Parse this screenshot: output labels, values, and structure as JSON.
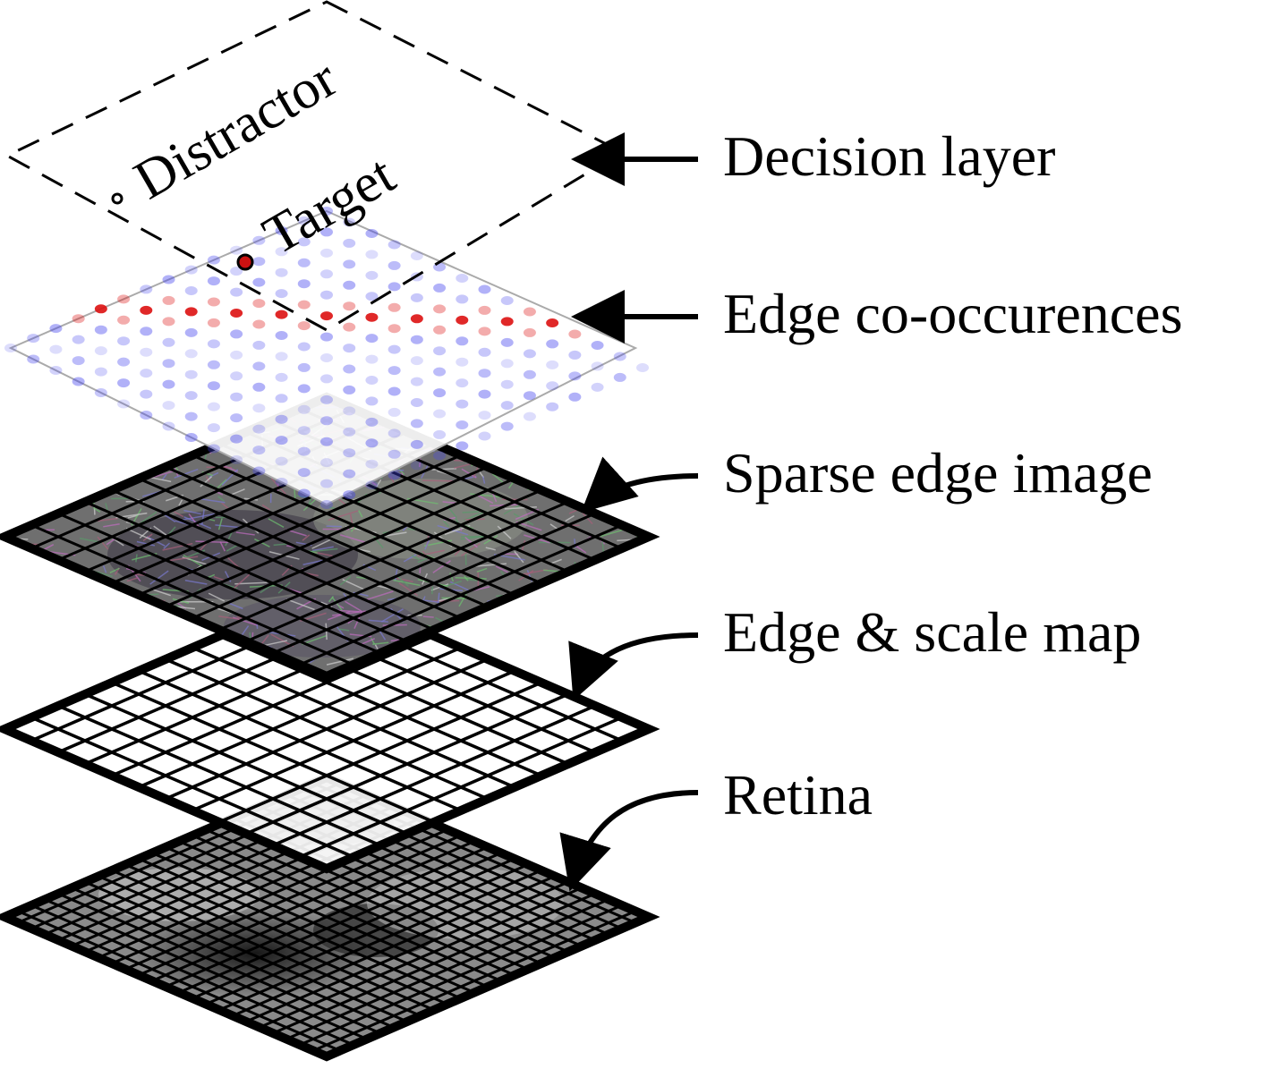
{
  "colors": {
    "background": "#ffffff",
    "target_dot": "#cc1111",
    "positive_cooccurrence": "#dd1111",
    "negative_cooccurrence": "#4444ee",
    "frame_stroke": "#000000"
  },
  "decision_layer": {
    "distractor_label": "Distractor",
    "target_label": "Target"
  },
  "layers": [
    {
      "id": "decision",
      "label": "Decision layer",
      "style": "dashed-outline"
    },
    {
      "id": "cooccurrence",
      "label": "Edge co-occurences",
      "style": "dot-grid"
    },
    {
      "id": "sparse",
      "label": "Sparse edge image",
      "style": "textured-grid"
    },
    {
      "id": "edge_scale",
      "label": "Edge & scale map",
      "style": "white-grid"
    },
    {
      "id": "retina",
      "label": "Retina",
      "style": "photo-grid"
    }
  ]
}
